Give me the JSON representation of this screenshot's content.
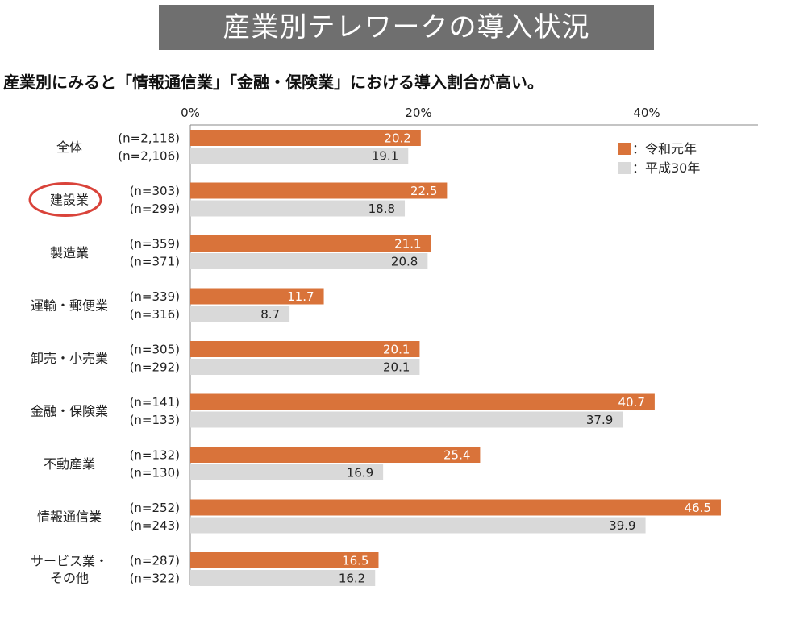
{
  "header": {
    "title": "産業別テレワークの導入状況",
    "subtitle": "産業別にみると「情報通信業」「金融・保険業」における導入割合が高い。"
  },
  "colors": {
    "series_current": "#d9733a",
    "series_previous": "#d9d9d9",
    "banner": "#6f6f6f",
    "highlight_circle": "#d9433a",
    "axis": "#888888"
  },
  "chart_data": {
    "type": "bar",
    "orientation": "horizontal",
    "x_ticks": [
      0,
      20,
      40
    ],
    "x_tick_labels": [
      "0%",
      "20%",
      "40%"
    ],
    "xlim": [
      0,
      50
    ],
    "categories": [
      "全体",
      "建設業",
      "製造業",
      "運輸・郵便業",
      "卸売・小売業",
      "金融・保険業",
      "不動産業",
      "情報通信業",
      "サービス業・その他"
    ],
    "category_lines": [
      [
        "全体"
      ],
      [
        "建設業"
      ],
      [
        "製造業"
      ],
      [
        "運輸・郵便業"
      ],
      [
        "卸売・小売業"
      ],
      [
        "金融・保険業"
      ],
      [
        "不動産業"
      ],
      [
        "情報通信業"
      ],
      [
        "サービス業・",
        "その他"
      ]
    ],
    "highlighted_category": "建設業",
    "series": [
      {
        "name": "令和元年",
        "legend_label": "：令和元年",
        "values": [
          20.2,
          22.5,
          21.1,
          11.7,
          20.1,
          40.7,
          25.4,
          46.5,
          16.5
        ],
        "value_labels": [
          "20.2",
          "22.5",
          "21.1",
          "11.7",
          "20.1",
          "40.7",
          "25.4",
          "46.5",
          "16.5"
        ],
        "n": [
          "(n=2,118)",
          "(n=303)",
          "(n=359)",
          "(n=339)",
          "(n=305)",
          "(n=141)",
          "(n=132)",
          "(n=252)",
          "(n=287)"
        ]
      },
      {
        "name": "平成30年",
        "legend_label": "：平成30年",
        "values": [
          19.1,
          18.8,
          20.8,
          8.7,
          20.1,
          37.9,
          16.9,
          39.9,
          16.2
        ],
        "value_labels": [
          "19.1",
          "18.8",
          "20.8",
          "8.7",
          "20.1",
          "37.9",
          "16.9",
          "39.9",
          "16.2"
        ],
        "n": [
          "(n=2,106)",
          "(n=299)",
          "(n=371)",
          "(n=316)",
          "(n=292)",
          "(n=133)",
          "(n=130)",
          "(n=243)",
          "(n=322)"
        ]
      }
    ],
    "legend_position": "top-right",
    "grid": false
  }
}
